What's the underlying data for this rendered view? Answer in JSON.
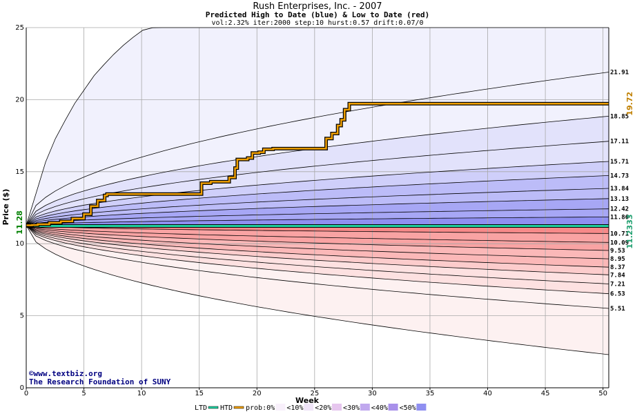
{
  "header": {
    "title": "Rush Enterprises, Inc. - 2007",
    "subtitle": "Predicted High to Date (blue) &  Low to Date (red)",
    "params": "vol:2.32% iter:2000 step:10 hurst:0.57 drift:0.07/0"
  },
  "credits": {
    "url": "©www.textbiz.org",
    "org": "The Research Foundation of SUNY"
  },
  "colors": {
    "htd": "#f0a000",
    "ltd": "#20d0a0",
    "start_label": "#008000",
    "ltd_label": "#20a070",
    "htd_label": "#c08000",
    "blue_bands": [
      "#f1f1fd",
      "#e2e2fb",
      "#cfcffa",
      "#bcbcf8",
      "#a7a7f5",
      "#8f8ff1"
    ],
    "red_bands": [
      "#fdf1f1",
      "#fde1e1",
      "#fccccc",
      "#fbb8b8",
      "#f9a3a3",
      "#f78989"
    ]
  },
  "chart_data": {
    "type": "area",
    "title": "Rush Enterprises, Inc. - 2007",
    "xlabel": "Week",
    "ylabel": "Price ($)",
    "xlim": [
      0,
      50.5
    ],
    "ylim": [
      0,
      25
    ],
    "x_ticks": [
      0,
      5,
      10,
      15,
      20,
      25,
      30,
      35,
      40,
      45,
      50
    ],
    "y_ticks": [
      0,
      5,
      10,
      15,
      20,
      25
    ],
    "grid": true,
    "start_value": 11.28,
    "start_label": "11.28",
    "high_quantile_ends": [
      11.86,
      12.42,
      13.13,
      13.84,
      14.73,
      15.71,
      17.11,
      18.85,
      21.91
    ],
    "high_quantile_labels": [
      "11.86",
      "12.42",
      "13.13",
      "13.84",
      "14.73",
      "15.71",
      "17.11",
      "18.85",
      "21.91"
    ],
    "low_quantile_ends": [
      10.71,
      10.09,
      9.53,
      8.95,
      8.37,
      7.84,
      7.21,
      6.53,
      5.51
    ],
    "low_quantile_labels": [
      "10.71",
      "10.09",
      "9.53",
      "8.95",
      "8.37",
      "7.84",
      "7.21",
      "6.53",
      "5.51"
    ],
    "outer_high_curve": {
      "x": [
        0,
        2,
        4,
        6,
        8,
        10,
        11
      ],
      "y": [
        11.28,
        16.5,
        19.5,
        21.8,
        23.5,
        24.8,
        25
      ]
    },
    "outer_low_end": 2.3,
    "htd_label": "19.72",
    "htd_series": {
      "name": "HTD",
      "x": [
        0,
        0.5,
        1,
        2,
        3,
        4,
        5,
        5.6,
        6.2,
        6.8,
        7,
        14.8,
        15.2,
        16,
        17.6,
        18.1,
        18.3,
        19.2,
        19.6,
        20.2,
        20.6,
        21.4,
        25.8,
        26,
        26.5,
        27,
        27.3,
        27.6,
        28,
        50.5
      ],
      "y": [
        11.28,
        11.3,
        11.35,
        11.45,
        11.55,
        11.75,
        12.05,
        12.6,
        13.0,
        13.35,
        13.45,
        13.45,
        14.2,
        14.3,
        14.6,
        15.25,
        15.85,
        15.95,
        16.3,
        16.35,
        16.55,
        16.6,
        16.6,
        17.3,
        17.65,
        18.2,
        18.6,
        19.3,
        19.72,
        19.72
      ]
    },
    "ltd_label": "11.2333",
    "ltd_series": {
      "name": "LTD",
      "x": [
        0,
        50.5
      ],
      "y": [
        11.23,
        11.23
      ]
    },
    "legend": {
      "position": "bottom",
      "items": [
        "LTD",
        "HTD",
        "prob:0%",
        "<10%",
        "<20%",
        "<30%",
        "<40%",
        "<50%"
      ],
      "item_colors": [
        "#20d0a0",
        "#f0a000",
        "",
        "#f8f0fb",
        "#efe4f7",
        "#e6c6ee",
        "#c0a8ee",
        "#a890ea"
      ]
    }
  }
}
